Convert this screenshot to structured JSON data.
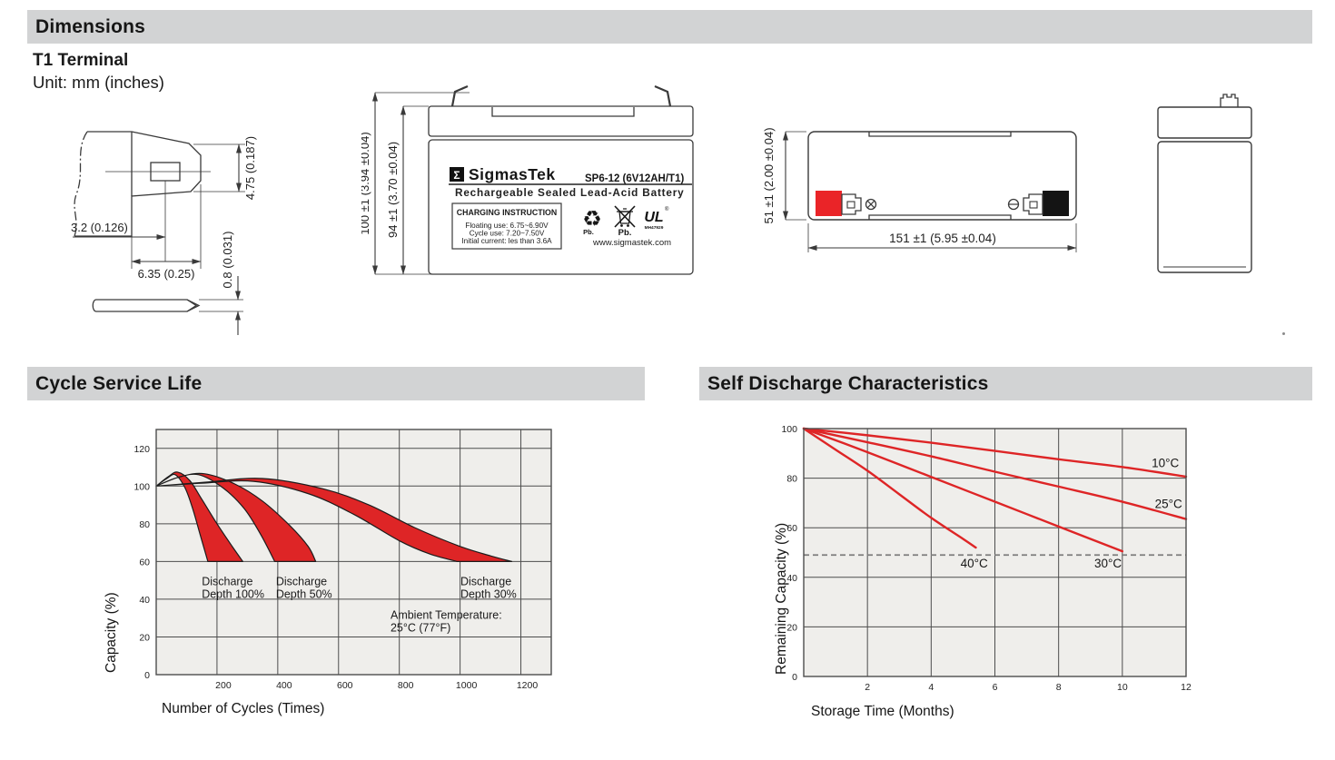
{
  "colors": {
    "accent_red": "#de2526",
    "terminal_red": "#ea2428",
    "section_bar_bg": "#d2d3d4",
    "grid": "#4d4d4d",
    "plot_bg": "#efeeeb",
    "dashed": "#7d7d7d"
  },
  "sections": {
    "dimensions": "Dimensions",
    "cycle_service_life": "Cycle Service Life",
    "self_discharge": "Self Discharge Characteristics"
  },
  "terminal": {
    "title": "T1 Terminal",
    "unit_note": "Unit: mm (inches)"
  },
  "drawings": {
    "terminal_detail": {
      "dim_height": "4.75 (0.187)",
      "dim_offset": "3.2 (0.126)",
      "dim_width": "6.35 (0.25)",
      "dim_thickness": "0.8 (0.031)"
    },
    "front_view": {
      "dim_total_height": "100 ±1 (3.94 ±0.04)",
      "dim_case_height": "94 ±1 (3.70 ±0.04)",
      "label": {
        "logo_glyph": "Σ",
        "brand": "SigmasTek",
        "model": "SP6-12 (6V12AH/T1)",
        "subtitle": "Rechargeable Sealed Lead-Acid Battery",
        "charging_title": "CHARGING INSTRUCTION",
        "charging_lines": [
          "Floating use: 6.75~6.90V",
          "Cycle use: 7.20~7.50V",
          "Initial current: les than 3.6A"
        ],
        "recycle_pb": "Pb.",
        "bin_pb": "Pb.",
        "ul_monogram": "UL",
        "ul_registered": "®",
        "ul_code": "MH47929",
        "website": "www.sigmastek.com"
      }
    },
    "top_view": {
      "dim_height": "51 ±1 (2.00 ±0.04)",
      "dim_length": "151 ±1 (5.95 ±0.04)",
      "positive_symbol": "⊕",
      "negative_symbol": "⊖"
    }
  },
  "chart_data": [
    {
      "type": "area",
      "title": "Cycle Service Life",
      "xlabel": "Number of Cycles (Times)",
      "ylabel": "Capacity (%)",
      "xlim": [
        0,
        1300
      ],
      "ylim": [
        0,
        130
      ],
      "x_ticks": [
        200,
        400,
        600,
        800,
        1000,
        1200
      ],
      "y_ticks": [
        0,
        20,
        40,
        60,
        80,
        100,
        120
      ],
      "x_grid": [
        200,
        400,
        600,
        800,
        1000,
        1200
      ],
      "y_grid": [
        20,
        40,
        60,
        80,
        100,
        120
      ],
      "grid": true,
      "legend_position": "none",
      "bands": [
        {
          "name": "Discharge Depth 100%",
          "lower": [
            [
              0,
              100
            ],
            [
              35,
              104
            ],
            [
              63,
              106
            ],
            [
              95,
              99
            ],
            [
              120,
              88
            ],
            [
              145,
              74
            ],
            [
              170,
              60
            ]
          ],
          "upper": [
            [
              0,
              100
            ],
            [
              40,
              105
            ],
            [
              70,
              107.4
            ],
            [
              110,
              103
            ],
            [
              150,
              93
            ],
            [
              200,
              80
            ],
            [
              250,
              68
            ],
            [
              285,
              60
            ]
          ]
        },
        {
          "name": "Discharge Depth 50%",
          "lower": [
            [
              0,
              100
            ],
            [
              70,
              104.5
            ],
            [
              140,
              106
            ],
            [
              220,
              99
            ],
            [
              290,
              88
            ],
            [
              345,
              74
            ],
            [
              390,
              60
            ]
          ],
          "upper": [
            [
              0,
              100
            ],
            [
              80,
              105
            ],
            [
              160,
              106.5
            ],
            [
              260,
              101
            ],
            [
              350,
              92
            ],
            [
              440,
              79
            ],
            [
              500,
              68
            ],
            [
              525,
              60
            ]
          ]
        },
        {
          "name": "Discharge Depth 30%",
          "lower": [
            [
              0,
              100
            ],
            [
              150,
              101.5
            ],
            [
              320,
              102.5
            ],
            [
              500,
              96
            ],
            [
              650,
              85
            ],
            [
              800,
              71
            ],
            [
              900,
              64
            ],
            [
              990,
              60
            ]
          ],
          "upper": [
            [
              0,
              100
            ],
            [
              160,
              102
            ],
            [
              350,
              104
            ],
            [
              550,
              98.5
            ],
            [
              700,
              90
            ],
            [
              850,
              78
            ],
            [
              1000,
              68
            ],
            [
              1100,
              63
            ],
            [
              1170,
              60
            ]
          ]
        }
      ],
      "annotations": [
        {
          "lines": [
            "Discharge",
            "Depth 100%"
          ],
          "x": 150,
          "y": 47.5
        },
        {
          "lines": [
            "Discharge",
            "Depth 50%"
          ],
          "x": 394,
          "y": 47.5
        },
        {
          "lines": [
            "Discharge",
            "Depth 30%"
          ],
          "x": 1001,
          "y": 47.5
        },
        {
          "lines": [
            "Ambient Temperature:",
            "25°C (77°F)"
          ],
          "x": 771,
          "y": 29.5
        }
      ]
    },
    {
      "type": "line",
      "title": "Self Discharge Characteristics",
      "xlabel": "Storage Time (Months)",
      "ylabel": "Remaining Capacity (%)",
      "xlim": [
        0,
        12
      ],
      "ylim": [
        0,
        100
      ],
      "x_ticks": [
        2,
        4,
        6,
        8,
        10,
        12
      ],
      "y_ticks": [
        0,
        20,
        40,
        60,
        80,
        100
      ],
      "x_grid": [
        2,
        4,
        6,
        8,
        10
      ],
      "y_grid": [
        20,
        40,
        60,
        80
      ],
      "grid": true,
      "legend_position": "inline-labels",
      "series": [
        {
          "name": "10°C",
          "points": [
            [
              0,
              100
            ],
            [
              2,
              97.3
            ],
            [
              4,
              94.3
            ],
            [
              6,
              91
            ],
            [
              8,
              87.6
            ],
            [
              10,
              84.5
            ],
            [
              12,
              80.6
            ]
          ],
          "label_x": 11.35,
          "label_y": 84.5
        },
        {
          "name": "25°C",
          "points": [
            [
              0,
              100
            ],
            [
              2,
              94.5
            ],
            [
              4,
              88.8
            ],
            [
              6,
              82.6
            ],
            [
              8,
              76.6
            ],
            [
              10,
              70.5
            ],
            [
              12,
              63.5
            ]
          ],
          "label_x": 11.45,
          "label_y": 68
        },
        {
          "name": "30°C",
          "points": [
            [
              0,
              100
            ],
            [
              2,
              90.5
            ],
            [
              4,
              80.5
            ],
            [
              6,
              70.5
            ],
            [
              8,
              60.5
            ],
            [
              10,
              50.5
            ]
          ],
          "label_x": 9.55,
          "label_y": 44
        },
        {
          "name": "40°C",
          "points": [
            [
              0,
              100
            ],
            [
              1,
              91.5
            ],
            [
              2,
              83
            ],
            [
              3,
              73.5
            ],
            [
              4,
              64
            ],
            [
              5,
              55.5
            ],
            [
              5.4,
              52
            ]
          ],
          "label_x": 5.35,
          "label_y": 44
        }
      ],
      "dashed_line_y": 49
    }
  ]
}
